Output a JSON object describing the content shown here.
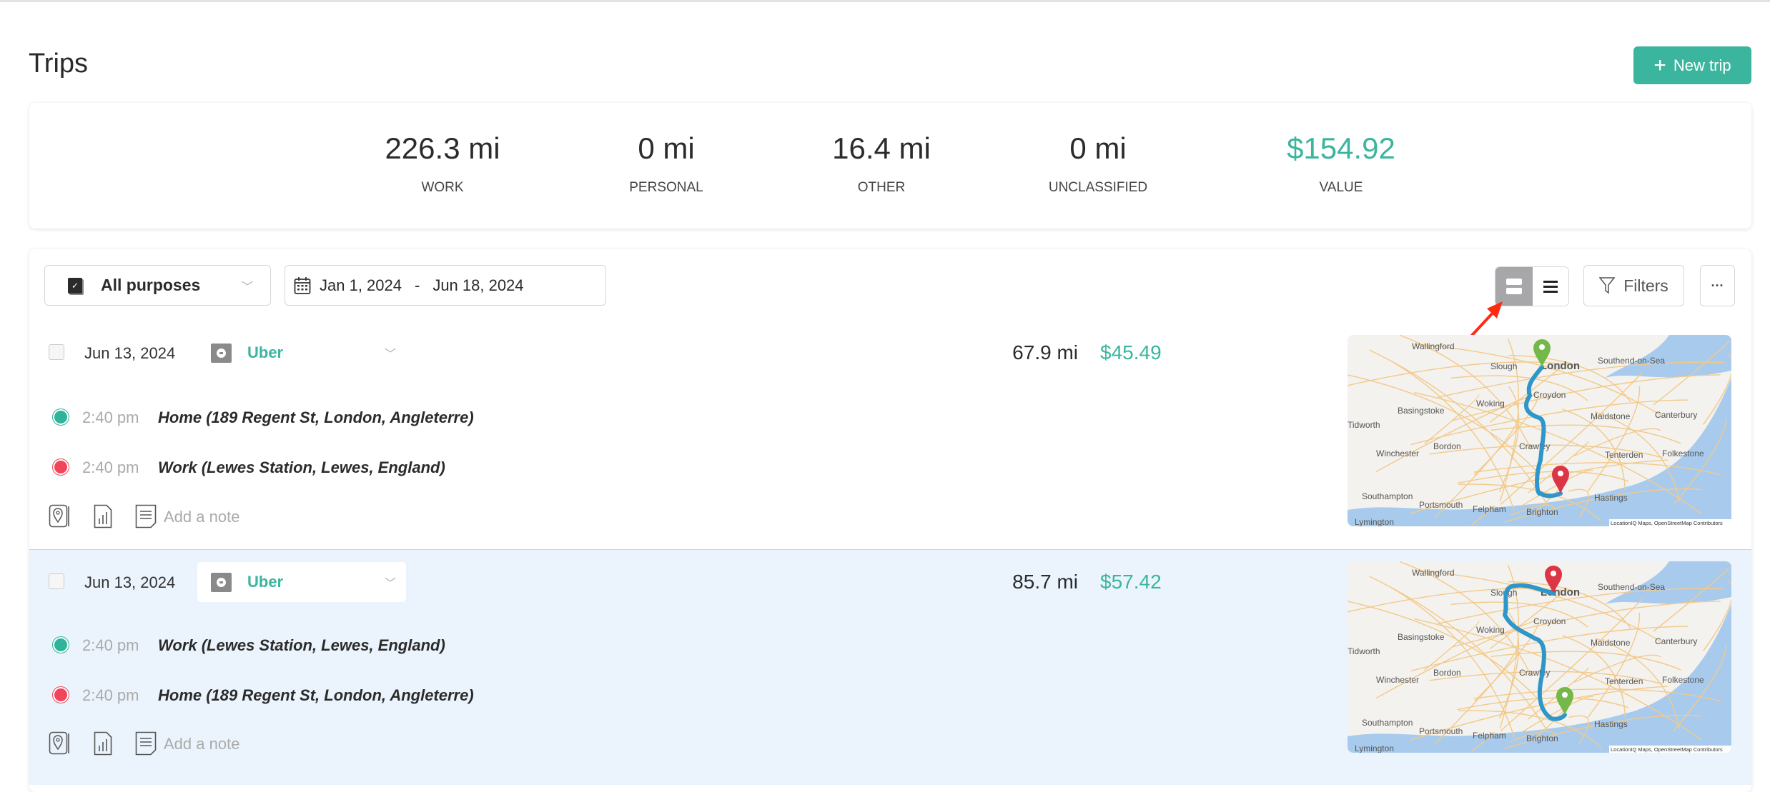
{
  "header": {
    "title": "Trips",
    "new_trip_label": "New trip",
    "new_trip_icon": "plus-icon"
  },
  "colors": {
    "accent": "#3bb59e",
    "selected_row": "#ebf4fd",
    "start_dot": "#2fb39a",
    "end_dot": "#f0455a",
    "route": "#2e96c8",
    "annotation_arrow": "#ff2a12"
  },
  "summary": [
    {
      "value": "226.3 mi",
      "label": "WORK"
    },
    {
      "value": "0 mi",
      "label": "PERSONAL"
    },
    {
      "value": "16.4 mi",
      "label": "OTHER"
    },
    {
      "value": "0 mi",
      "label": "UNCLASSIFIED"
    },
    {
      "value": "$154.92",
      "label": "VALUE"
    }
  ],
  "toolbar": {
    "purpose_select": "All purposes",
    "date_start": "Jan 1, 2024",
    "date_sep": "-",
    "date_end": "Jun 18, 2024",
    "view_mode_selected": "card",
    "filters_label": "Filters",
    "more_label": "···"
  },
  "trips": [
    {
      "date": "Jun 13, 2024",
      "purpose": "Uber",
      "miles": "67.9 mi",
      "value": "$45.49",
      "stops": [
        {
          "time": "2:40 pm",
          "place": "Home (189 Regent St, London, Angleterre)"
        },
        {
          "time": "2:40 pm",
          "place": "Work (Lewes Station, Lewes, England)"
        }
      ],
      "note_placeholder": "Add a note",
      "selected": false
    },
    {
      "date": "Jun 13, 2024",
      "purpose": "Uber",
      "miles": "85.7 mi",
      "value": "$57.42",
      "stops": [
        {
          "time": "2:40 pm",
          "place": "Work (Lewes Station, Lewes, England)"
        },
        {
          "time": "2:40 pm",
          "place": "Home (189 Regent St, London, Angleterre)"
        }
      ],
      "note_placeholder": "Add a note",
      "selected": true
    }
  ],
  "map": {
    "labels": [
      "Wallingford",
      "Slough",
      "London",
      "Southend-on-Sea",
      "Croydon",
      "Woking",
      "Basingstoke",
      "Maidstone",
      "Canterbury",
      "Bordon",
      "Crawley",
      "Winchester",
      "Tenterden",
      "Folkestone",
      "Southampton",
      "Hastings",
      "Brighton",
      "Portsmouth",
      "Felpham",
      "Lymington",
      "Tidworth"
    ],
    "attribution": "LocationIQ Maps, OpenStreetMap Contributors"
  }
}
